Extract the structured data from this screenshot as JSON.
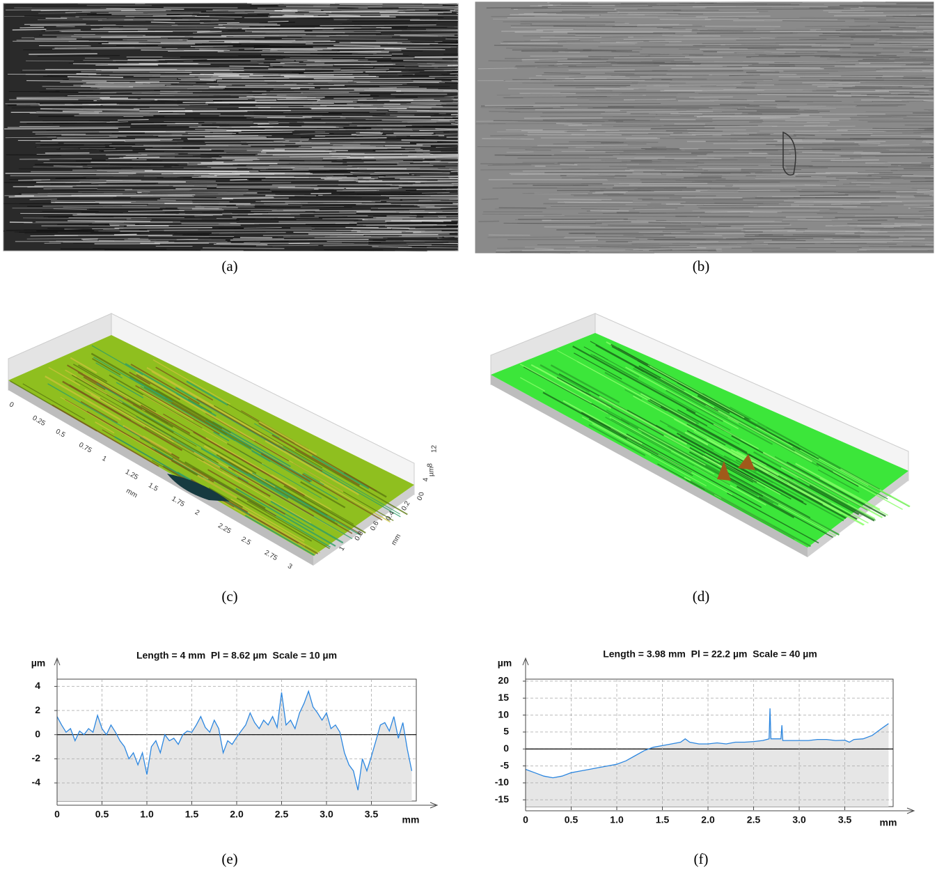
{
  "captions": {
    "a": "(a)",
    "b": "(b)",
    "c": "(c)",
    "d": "(d)",
    "e": "(e)",
    "f": "(f)"
  },
  "surface_c": {
    "x_tick_labels": [
      "0",
      "0.25",
      "0.5",
      "0.75",
      "1",
      "1.25",
      "1.5",
      "1.75",
      "2",
      "2.25",
      "2.5",
      "2.75",
      "3"
    ],
    "x_unit": "mm",
    "y_tick_labels": [
      "0",
      "0.2",
      "0.4",
      "0.6",
      "0.8",
      "1"
    ],
    "y_unit": "mm",
    "z_tick_labels": [
      "0",
      "4",
      "8",
      "12"
    ],
    "z_unit": "µm"
  },
  "chart_data": [
    {
      "type": "area",
      "title": "Length = 4 mm  Pl = 8.62 µm  Scale = 10 µm",
      "y_label": "µm",
      "x_label": "mm",
      "color": "#2b86e0",
      "fill_color": "#e6e6e6",
      "grid": true,
      "xlim": [
        0,
        4
      ],
      "ylim": [
        -5.5,
        4.6
      ],
      "xticks": [
        0,
        0.5,
        {
          "value": 1,
          "label": "1.0"
        },
        1.5,
        {
          "value": 2,
          "label": "2.0"
        },
        2.5,
        {
          "value": 3,
          "label": "3.0"
        },
        3.5
      ],
      "yticks": [
        -4,
        -2,
        0,
        2,
        4
      ],
      "x": [
        0,
        0.05,
        0.1,
        0.15,
        0.2,
        0.25,
        0.3,
        0.35,
        0.4,
        0.45,
        0.5,
        0.55,
        0.6,
        0.65,
        0.7,
        0.75,
        0.8,
        0.85,
        0.9,
        0.95,
        1.0,
        1.05,
        1.1,
        1.15,
        1.2,
        1.25,
        1.3,
        1.35,
        1.4,
        1.45,
        1.5,
        1.55,
        1.6,
        1.65,
        1.7,
        1.75,
        1.8,
        1.85,
        1.9,
        1.95,
        2.0,
        2.05,
        2.1,
        2.15,
        2.2,
        2.25,
        2.3,
        2.35,
        2.4,
        2.45,
        2.5,
        2.55,
        2.6,
        2.65,
        2.7,
        2.75,
        2.8,
        2.85,
        2.9,
        2.95,
        3.0,
        3.05,
        3.1,
        3.15,
        3.2,
        3.25,
        3.3,
        3.35,
        3.4,
        3.45,
        3.5,
        3.55,
        3.6,
        3.65,
        3.7,
        3.75,
        3.8,
        3.85,
        3.9,
        3.95
      ],
      "values": [
        1.5,
        0.8,
        0.2,
        0.5,
        -0.5,
        0.3,
        0,
        0.5,
        0.2,
        1.6,
        0.5,
        0,
        0.8,
        0.2,
        -0.5,
        -1,
        -2,
        -1.5,
        -2.5,
        -1.5,
        -3.3,
        -1,
        -0.5,
        -1.5,
        0,
        -0.5,
        -0.3,
        -0.8,
        0,
        0.3,
        0.2,
        0.8,
        1.5,
        0.6,
        0.2,
        1.2,
        0.5,
        -1.5,
        -0.5,
        -0.8,
        -0.2,
        0.3,
        0.8,
        1.8,
        1.0,
        0.5,
        1.2,
        0.8,
        1.5,
        0.6,
        3.5,
        0.8,
        1.2,
        0.5,
        1.8,
        2.6,
        3.6,
        2.3,
        1.8,
        1.2,
        1.8,
        0.5,
        0.8,
        0.2,
        -1.5,
        -2.5,
        -3,
        -4.6,
        -2,
        -3,
        -1.8,
        -0.5,
        0.8,
        1.0,
        0.3,
        1.5,
        -0.3,
        1.0,
        -1.2,
        -3
      ]
    },
    {
      "type": "area",
      "title": "Length = 3.98 mm  Pl = 22.2 µm  Scale = 40 µm",
      "y_label": "µm",
      "x_label": "mm",
      "color": "#2b86e0",
      "fill_color": "#e6e6e6",
      "grid": true,
      "xlim": [
        0,
        4.03
      ],
      "ylim": [
        -17,
        20.6
      ],
      "xticks": [
        0,
        0.5,
        {
          "value": 1,
          "label": "1.0"
        },
        1.5,
        {
          "value": 2,
          "label": "2.0"
        },
        2.5,
        {
          "value": 3,
          "label": "3.0"
        },
        3.5
      ],
      "yticks": [
        -15,
        -10,
        -5,
        0,
        5,
        10,
        15,
        20
      ],
      "x": [
        0,
        0.1,
        0.2,
        0.3,
        0.4,
        0.5,
        0.6,
        0.7,
        0.8,
        0.9,
        1.0,
        1.1,
        1.2,
        1.3,
        1.4,
        1.5,
        1.6,
        1.7,
        1.75,
        1.8,
        1.9,
        2.0,
        2.1,
        2.2,
        2.3,
        2.4,
        2.5,
        2.6,
        2.67,
        2.68,
        2.69,
        2.8,
        2.81,
        2.82,
        2.9,
        3.0,
        3.1,
        3.2,
        3.3,
        3.4,
        3.5,
        3.55,
        3.6,
        3.7,
        3.8,
        3.9,
        3.98
      ],
      "values": [
        -6,
        -7,
        -8,
        -8.5,
        -8,
        -7,
        -6.5,
        -6,
        -5.5,
        -5,
        -4.5,
        -3.5,
        -2,
        -0.5,
        0.5,
        1,
        1.5,
        2,
        3,
        2,
        1.5,
        1.5,
        1.8,
        1.5,
        2,
        2,
        2.2,
        2.5,
        3,
        12,
        3,
        3,
        7,
        2.5,
        2.5,
        2.5,
        2.5,
        2.8,
        2.8,
        2.5,
        2.6,
        2,
        2.8,
        3,
        4,
        6,
        7.5
      ]
    }
  ]
}
